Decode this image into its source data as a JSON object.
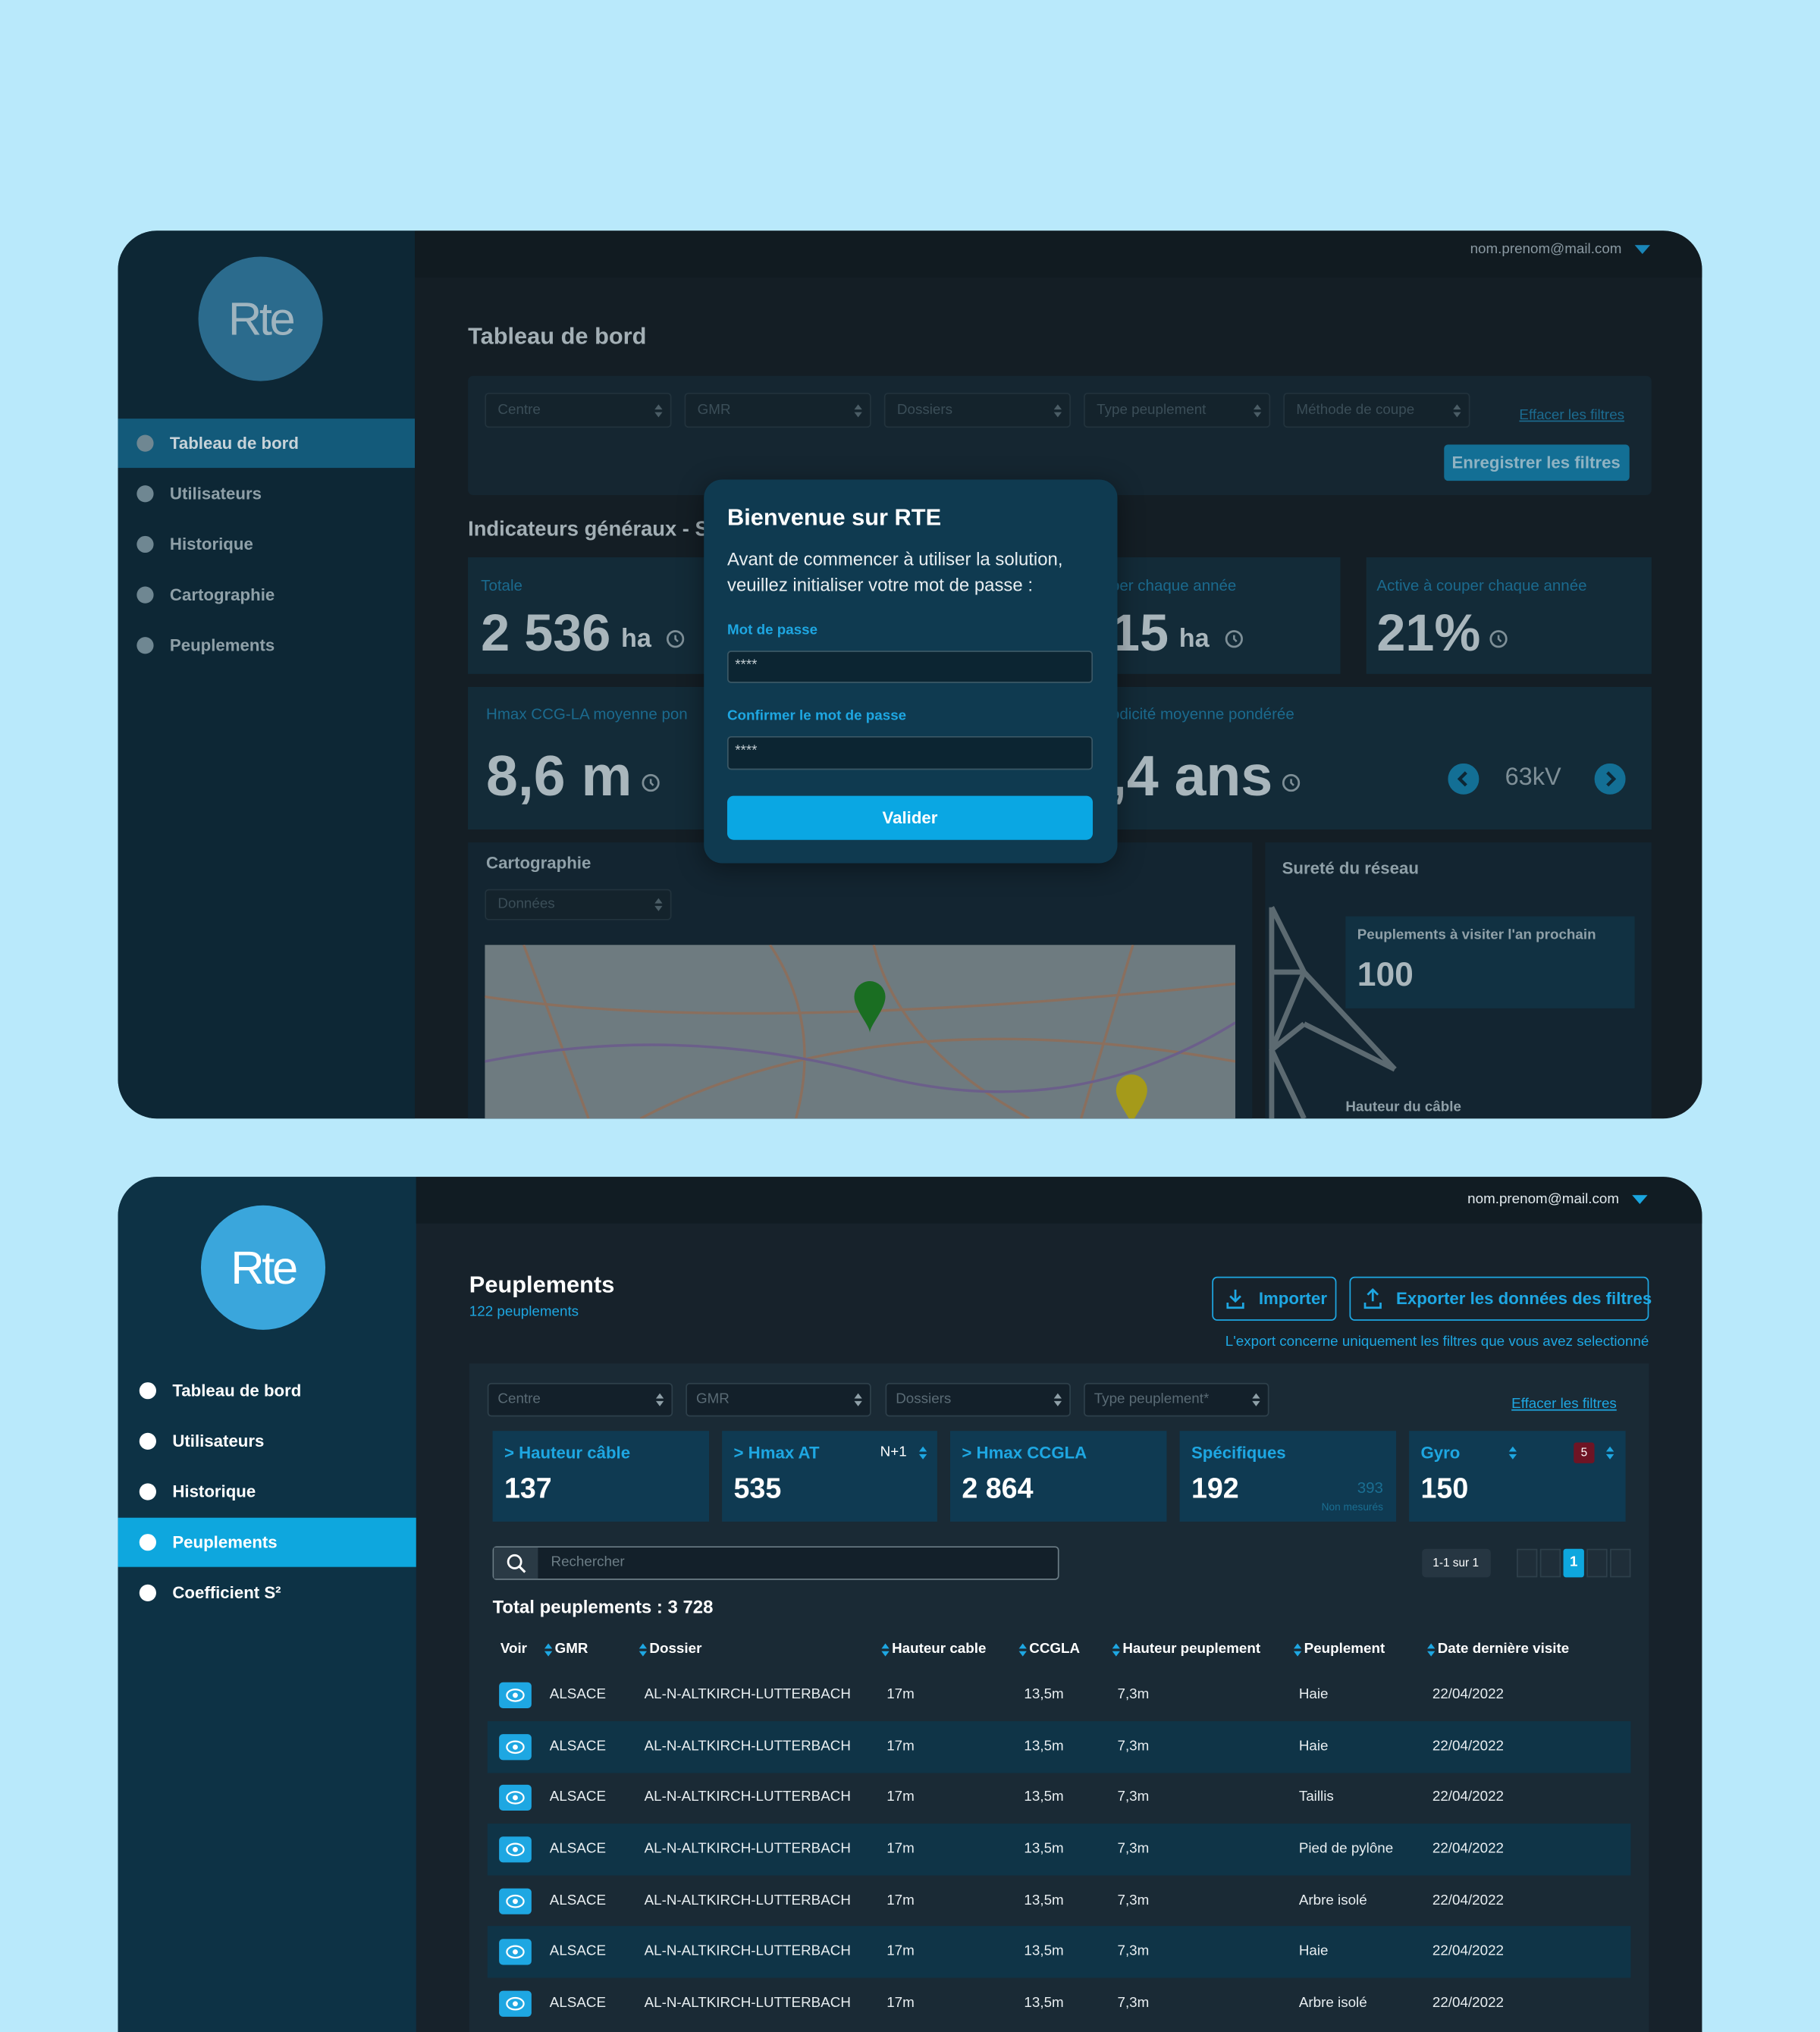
{
  "top": {
    "user_email": "nom.prenom@mail.com",
    "logo": "Rte",
    "nav": [
      "Tableau de bord",
      "Utilisateurs",
      "Historique",
      "Cartographie",
      "Peuplements"
    ],
    "page_title": "Tableau de bord",
    "filters": [
      "Centre",
      "GMR",
      "Dossiers",
      "Type peuplement",
      "Méthode de coupe"
    ],
    "clear_filters": "Effacer les filtres",
    "save_filters": "Enregistrer les filtres",
    "section_title": "Indicateurs généraux - S",
    "kpis": [
      {
        "label": "Totale",
        "value": "2 536",
        "unit": "ha"
      },
      {
        "label": "per chaque année",
        "value": "15",
        "unit": "ha"
      },
      {
        "label": "Active à couper chaque année",
        "value": "21%"
      },
      {
        "label": "Hmax CCG-LA moyenne pon",
        "value": "8,6 m"
      },
      {
        "label": "odicité moyenne pondérée",
        "value": ",4 ans"
      }
    ],
    "voltage": "63kV",
    "map": {
      "title": "Cartographie",
      "select": "Données"
    },
    "network": {
      "title": "Sureté du réseau",
      "card_label": "Peuplements à visiter l'an prochain",
      "card_value": "100",
      "cable_label": "Hauteur du câble"
    },
    "modal": {
      "title": "Bienvenue sur RTE",
      "text": "Avant de commencer à utiliser la solution, veuillez initialiser votre mot de passe :",
      "password_label": "Mot de passe",
      "password_value": "****",
      "confirm_label": "Confirmer le mot de passe",
      "confirm_value": "****",
      "submit": "Valider"
    }
  },
  "bottom": {
    "user_email": "nom.prenom@mail.com",
    "logo": "Rte",
    "nav": [
      "Tableau de bord",
      "Utilisateurs",
      "Historique",
      "Peuplements",
      "Coefficient S²"
    ],
    "page_title": "Peuplements",
    "subtitle": "122 peuplements",
    "import_button": "Importer",
    "export_button": "Exporter les données des filtres",
    "export_note": "L'export concerne uniquement les filtres que vous avez selectionné",
    "filters": [
      "Centre",
      "GMR",
      "Dossiers",
      "Type peuplement*"
    ],
    "clear_filters": "Effacer les filtres",
    "stats": [
      {
        "label": "> Hauteur câble",
        "value": "137"
      },
      {
        "label": "> Hmax AT",
        "value": "535",
        "option": "N+1"
      },
      {
        "label": "> Hmax CCGLA",
        "value": "2 864"
      },
      {
        "label": "Spécifiques",
        "value": "192",
        "secondary_value": "393",
        "secondary_label": "Non mesurés"
      },
      {
        "label": "Gyro",
        "value": "150",
        "badge": "5"
      }
    ],
    "search_placeholder": "Rechercher",
    "pagination": "1-1 sur 1",
    "current_page": "1",
    "total": "Total peuplements : 3 728",
    "table": {
      "headers": [
        "Voir",
        "GMR",
        "Dossier",
        "Hauteur cable",
        "CCGLA",
        "Hauteur peuplement",
        "Peuplement",
        "Date dernière visite"
      ],
      "rows": [
        [
          "ALSACE",
          "AL-N-ALTKIRCH-LUTTERBACH",
          "17m",
          "13,5m",
          "7,3m",
          "Haie",
          "22/04/2022"
        ],
        [
          "ALSACE",
          "AL-N-ALTKIRCH-LUTTERBACH",
          "17m",
          "13,5m",
          "7,3m",
          "Haie",
          "22/04/2022"
        ],
        [
          "ALSACE",
          "AL-N-ALTKIRCH-LUTTERBACH",
          "17m",
          "13,5m",
          "7,3m",
          "Taillis",
          "22/04/2022"
        ],
        [
          "ALSACE",
          "AL-N-ALTKIRCH-LUTTERBACH",
          "17m",
          "13,5m",
          "7,3m",
          "Pied de pylône",
          "22/04/2022"
        ],
        [
          "ALSACE",
          "AL-N-ALTKIRCH-LUTTERBACH",
          "17m",
          "13,5m",
          "7,3m",
          "Arbre isolé",
          "22/04/2022"
        ],
        [
          "ALSACE",
          "AL-N-ALTKIRCH-LUTTERBACH",
          "17m",
          "13,5m",
          "7,3m",
          "Haie",
          "22/04/2022"
        ],
        [
          "ALSACE",
          "AL-N-ALTKIRCH-LUTTERBACH",
          "17m",
          "13,5m",
          "7,3m",
          "Arbre isolé",
          "22/04/2022"
        ]
      ]
    }
  }
}
